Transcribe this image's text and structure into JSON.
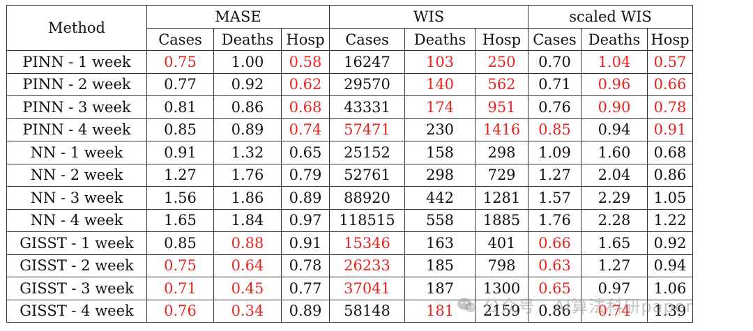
{
  "table": {
    "method_header": "Method",
    "groups": [
      "MASE",
      "WIS",
      "scaled WIS"
    ],
    "subheaders": [
      "Cases",
      "Deaths",
      "Hosp",
      "Cases",
      "Deaths",
      "Hosp",
      "Cases",
      "Deaths",
      "Hosp"
    ],
    "highlight_color": "#e8241f",
    "rows": [
      {
        "method": "PINN - 1 week",
        "values": [
          "0.75",
          "1.00",
          "0.58",
          "16247",
          "103",
          "250",
          "0.70",
          "1.04",
          "0.57"
        ],
        "highlight": [
          true,
          false,
          true,
          false,
          true,
          true,
          false,
          true,
          true
        ]
      },
      {
        "method": "PINN - 2 week",
        "values": [
          "0.77",
          "0.92",
          "0.62",
          "29570",
          "140",
          "562",
          "0.71",
          "0.96",
          "0.66"
        ],
        "highlight": [
          false,
          false,
          true,
          false,
          true,
          true,
          false,
          true,
          true
        ]
      },
      {
        "method": "PINN - 3 week",
        "values": [
          "0.81",
          "0.86",
          "0.68",
          "43331",
          "174",
          "951",
          "0.76",
          "0.90",
          "0.78"
        ],
        "highlight": [
          false,
          false,
          true,
          false,
          true,
          true,
          false,
          true,
          true
        ]
      },
      {
        "method": "PINN - 4 week",
        "values": [
          "0.85",
          "0.89",
          "0.74",
          "57471",
          "230",
          "1416",
          "0.85",
          "0.94",
          "0.91"
        ],
        "highlight": [
          false,
          false,
          true,
          true,
          false,
          true,
          true,
          false,
          true
        ]
      },
      {
        "method": "NN - 1 week",
        "values": [
          "0.91",
          "1.32",
          "0.65",
          "25152",
          "158",
          "298",
          "1.09",
          "1.60",
          "0.68"
        ],
        "highlight": [
          false,
          false,
          false,
          false,
          false,
          false,
          false,
          false,
          false
        ]
      },
      {
        "method": "NN - 2 week",
        "values": [
          "1.27",
          "1.76",
          "0.79",
          "52761",
          "298",
          "729",
          "1.27",
          "2.04",
          "0.86"
        ],
        "highlight": [
          false,
          false,
          false,
          false,
          false,
          false,
          false,
          false,
          false
        ]
      },
      {
        "method": "NN - 3 week",
        "values": [
          "1.56",
          "1.86",
          "0.89",
          "88920",
          "442",
          "1281",
          "1.57",
          "2.29",
          "1.05"
        ],
        "highlight": [
          false,
          false,
          false,
          false,
          false,
          false,
          false,
          false,
          false
        ]
      },
      {
        "method": "NN - 4 week",
        "values": [
          "1.65",
          "1.84",
          "0.97",
          "118515",
          "558",
          "1885",
          "1.76",
          "2.28",
          "1.22"
        ],
        "highlight": [
          false,
          false,
          false,
          false,
          false,
          false,
          false,
          false,
          false
        ]
      },
      {
        "method": "GISST - 1 week",
        "values": [
          "0.85",
          "0.88",
          "0.91",
          "15346",
          "163",
          "401",
          "0.66",
          "1.65",
          "0.92"
        ],
        "highlight": [
          false,
          true,
          false,
          true,
          false,
          false,
          true,
          false,
          false
        ]
      },
      {
        "method": "GISST - 2 week",
        "values": [
          "0.75",
          "0.64",
          "0.78",
          "26233",
          "185",
          "798",
          "0.63",
          "1.27",
          "0.94"
        ],
        "highlight": [
          true,
          true,
          false,
          true,
          false,
          false,
          true,
          false,
          false
        ]
      },
      {
        "method": "GISST - 3 week",
        "values": [
          "0.71",
          "0.45",
          "0.77",
          "37041",
          "187",
          "1300",
          "0.65",
          "0.97",
          "1.06"
        ],
        "highlight": [
          true,
          true,
          false,
          true,
          false,
          false,
          true,
          false,
          false
        ]
      },
      {
        "method": "GISST - 4 week",
        "values": [
          "0.76",
          "0.34",
          "0.89",
          "58148",
          "181",
          "2159",
          "0.86",
          "0.74",
          "1.39"
        ],
        "highlight": [
          true,
          true,
          false,
          false,
          true,
          false,
          false,
          true,
          false
        ]
      }
    ]
  },
  "watermark": {
    "text": "公众号 · AI算法科研paper",
    "icon": "wechat-icon"
  }
}
